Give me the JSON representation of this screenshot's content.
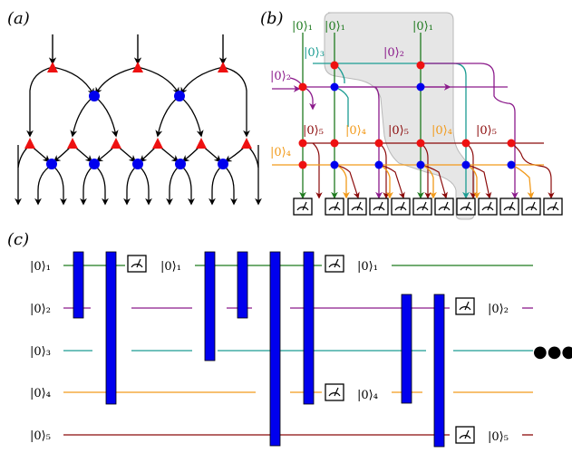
{
  "panels": {
    "a": {
      "label": "(a)"
    },
    "b": {
      "label": "(b)"
    },
    "c": {
      "label": "(c)"
    }
  },
  "colors": {
    "q1": "#1f7a1f",
    "q2": "#8b1a8b",
    "q3": "#1b9c92",
    "q4": "#f29a1a",
    "q5": "#8b0a0a",
    "gate": "#0000ee",
    "red_node": "#ee1111",
    "blue_node": "#0000ee",
    "highlight": "#e3e3e3"
  },
  "panel_b": {
    "top_labels": [
      "|0⟩₁",
      "|0⟩₁",
      "|0⟩₁"
    ],
    "mid_labels": [
      "|0⟩₃",
      "|0⟩₂",
      "|0⟩₂"
    ],
    "row2_labels": [
      "|0⟩₅",
      "|0⟩₄",
      "|0⟩₅",
      "|0⟩₄",
      "|0⟩₅"
    ],
    "left_label": "|0⟩₄"
  },
  "panel_c": {
    "wire_labels": [
      "|0⟩₁",
      "|0⟩₂",
      "|0⟩₃",
      "|0⟩₄",
      "|0⟩₅"
    ],
    "reset_labels": [
      "|0⟩₁",
      "|0⟩₁",
      "|0⟩₄",
      "|0⟩₂",
      "|0⟩₅"
    ],
    "ellipsis": "●●●"
  }
}
